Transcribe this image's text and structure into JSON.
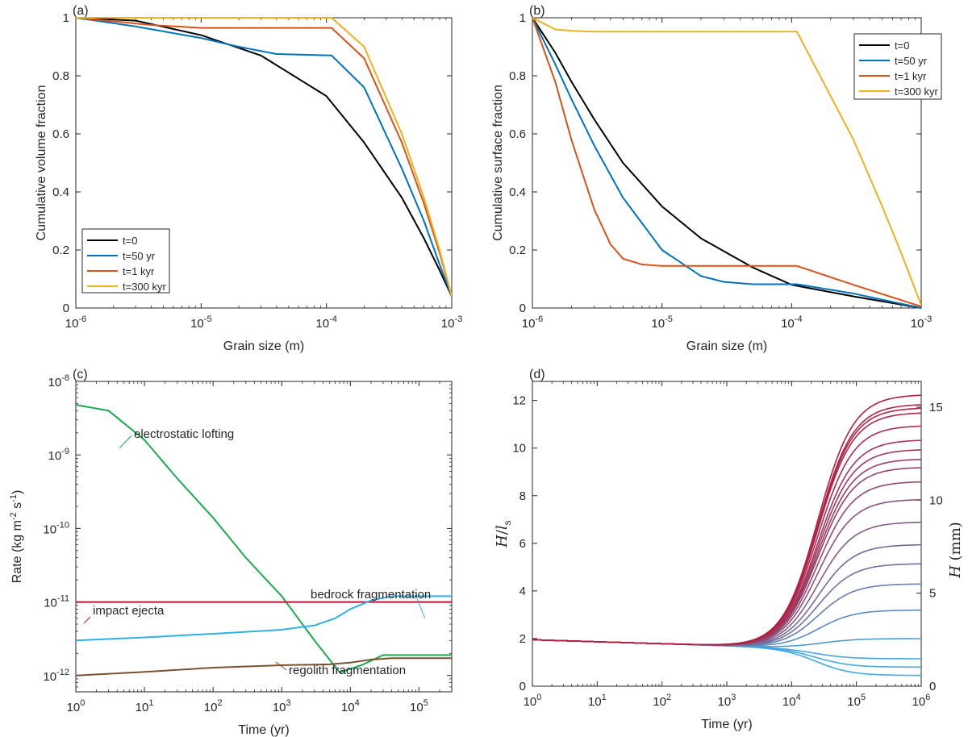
{
  "chart_data": [
    {
      "panel": "(a)",
      "type": "line",
      "xscale": "log",
      "xlim": [
        1e-06,
        0.001
      ],
      "ylim": [
        0,
        1
      ],
      "xlabel": "Grain size (m)",
      "ylabel": "Cumulative volume fraction",
      "legend_position": "bottom-left",
      "xticks": [
        {
          "base": "10",
          "exp": "-6"
        },
        {
          "base": "10",
          "exp": "-5"
        },
        {
          "base": "10",
          "exp": "-4"
        },
        {
          "base": "10",
          "exp": "-3"
        }
      ],
      "yticks": [
        "0",
        "0.2",
        "0.4",
        "0.6",
        "0.8",
        "1"
      ],
      "series": [
        {
          "name": "t=0",
          "color": "#000000",
          "x": [
            1e-06,
            3e-06,
            1e-05,
            3e-05,
            0.0001,
            0.0002,
            0.0004,
            0.0006,
            0.0008,
            0.001
          ],
          "y": [
            1.0,
            0.99,
            0.94,
            0.87,
            0.73,
            0.57,
            0.38,
            0.24,
            0.13,
            0.04
          ]
        },
        {
          "name": "t=50 yr",
          "color": "#0072BD",
          "x": [
            1e-06,
            3e-06,
            1e-05,
            2e-05,
            4e-05,
            0.00011,
            0.0002,
            0.0004,
            0.0006,
            0.0008,
            0.001
          ],
          "y": [
            1.0,
            0.97,
            0.93,
            0.9,
            0.875,
            0.87,
            0.76,
            0.48,
            0.3,
            0.15,
            0.04
          ]
        },
        {
          "name": "t=1 kyr",
          "color": "#D95319",
          "x": [
            1e-06,
            4e-06,
            1e-05,
            0.00011,
            0.0002,
            0.0004,
            0.0006,
            0.0008,
            0.001
          ],
          "y": [
            1.0,
            0.975,
            0.965,
            0.965,
            0.86,
            0.57,
            0.36,
            0.19,
            0.04
          ]
        },
        {
          "name": "t=300 kyr",
          "color": "#EDB120",
          "x": [
            1e-06,
            1e-05,
            0.00011,
            0.0002,
            0.0004,
            0.0006,
            0.0008,
            0.001
          ],
          "y": [
            1.0,
            1.0,
            1.0,
            0.9,
            0.6,
            0.38,
            0.2,
            0.04
          ]
        }
      ]
    },
    {
      "panel": "(b)",
      "type": "line",
      "xscale": "log",
      "xlim": [
        1e-06,
        0.001
      ],
      "ylim": [
        0,
        1
      ],
      "xlabel": "Grain size (m)",
      "ylabel": "Cumulative surface fraction",
      "legend_position": "top-right",
      "xticks": [
        {
          "base": "10",
          "exp": "-6"
        },
        {
          "base": "10",
          "exp": "-5"
        },
        {
          "base": "10",
          "exp": "-4"
        },
        {
          "base": "10",
          "exp": "-3"
        }
      ],
      "yticks": [
        "0",
        "0.2",
        "0.4",
        "0.6",
        "0.8",
        "1"
      ],
      "series": [
        {
          "name": "t=0",
          "color": "#000000",
          "x": [
            1e-06,
            1.5e-06,
            2e-06,
            3e-06,
            5e-06,
            1e-05,
            2e-05,
            5e-05,
            0.0001,
            0.0003,
            0.001
          ],
          "y": [
            1.0,
            0.88,
            0.78,
            0.65,
            0.5,
            0.35,
            0.24,
            0.14,
            0.08,
            0.04,
            0.0
          ]
        },
        {
          "name": "t=50 yr",
          "color": "#0072BD",
          "x": [
            1e-06,
            1.5e-06,
            2e-06,
            3e-06,
            5e-06,
            1e-05,
            2e-05,
            3e-05,
            5e-05,
            0.00011,
            0.0003,
            0.001
          ],
          "y": [
            1.0,
            0.84,
            0.72,
            0.56,
            0.38,
            0.2,
            0.11,
            0.09,
            0.082,
            0.082,
            0.05,
            0.0
          ]
        },
        {
          "name": "t=1 kyr",
          "color": "#D95319",
          "x": [
            1e-06,
            1.5e-06,
            2e-06,
            3e-06,
            4e-06,
            5e-06,
            7e-06,
            1e-05,
            2e-05,
            0.00011,
            0.0003,
            0.001
          ],
          "y": [
            1.0,
            0.78,
            0.58,
            0.34,
            0.22,
            0.17,
            0.15,
            0.145,
            0.145,
            0.145,
            0.08,
            0.005
          ]
        },
        {
          "name": "t=300 kyr",
          "color": "#EDB120",
          "x": [
            1e-06,
            1.5e-06,
            2e-06,
            3e-06,
            1e-05,
            0.00011,
            0.0002,
            0.0003,
            0.0005,
            0.0007,
            0.001
          ],
          "y": [
            1.0,
            0.96,
            0.955,
            0.952,
            0.952,
            0.952,
            0.73,
            0.58,
            0.35,
            0.19,
            0.01
          ]
        }
      ]
    },
    {
      "panel": "(c)",
      "type": "line",
      "xscale": "log",
      "yscale": "log",
      "xlim": [
        1,
        300000.0
      ],
      "ylim": [
        6e-13,
        1e-08
      ],
      "xlabel": "Time (yr)",
      "ylabel": {
        "text": "Rate (kg m",
        "sup1": "-2",
        "mid": " s",
        "sup2": "-1",
        "end": ")"
      },
      "xticks": [
        {
          "base": "10",
          "exp": "0"
        },
        {
          "base": "10",
          "exp": "1"
        },
        {
          "base": "10",
          "exp": "2"
        },
        {
          "base": "10",
          "exp": "3"
        },
        {
          "base": "10",
          "exp": "4"
        },
        {
          "base": "10",
          "exp": "5"
        }
      ],
      "yticks": [
        {
          "base": "10",
          "exp": "-12"
        },
        {
          "base": "10",
          "exp": "-11"
        },
        {
          "base": "10",
          "exp": "-10"
        },
        {
          "base": "10",
          "exp": "-9"
        },
        {
          "base": "10",
          "exp": "-8"
        }
      ],
      "series": [
        {
          "name": "electrostatic lofting",
          "color": "#1AAB4F",
          "x": [
            1,
            3,
            10,
            30,
            100,
            300,
            1000,
            3000,
            7000,
            15000,
            30000,
            100000,
            300000
          ],
          "y": [
            4.8e-09,
            4e-09,
            1.6e-09,
            4.8e-10,
            1.4e-10,
            4e-11,
            1.2e-11,
            3e-12,
            1.1e-12,
            1.4e-12,
            1.9e-12,
            1.9e-12,
            1.9e-12
          ]
        },
        {
          "name": "impact ejecta",
          "color": "#C4102F",
          "x": [
            1,
            300000
          ],
          "y": [
            1e-11,
            1e-11
          ]
        },
        {
          "name": "bedrock fragmentation",
          "color": "#2EB0E6",
          "x": [
            1,
            10,
            100,
            1000,
            3000,
            6000,
            10000,
            20000,
            40000,
            300000
          ],
          "y": [
            3e-12,
            3.3e-12,
            3.7e-12,
            4.2e-12,
            4.8e-12,
            6e-12,
            8e-12,
            1.05e-11,
            1.2e-11,
            1.2e-11
          ]
        },
        {
          "name": "regolith fragmentation",
          "color": "#7B5230",
          "x": [
            1,
            10,
            100,
            1000,
            5000,
            10000,
            20000,
            40000,
            300000
          ],
          "y": [
            1e-12,
            1.12e-12,
            1.28e-12,
            1.38e-12,
            1.42e-12,
            1.5e-12,
            1.65e-12,
            1.72e-12,
            1.72e-12
          ]
        }
      ],
      "annotations": [
        "electrostatic lofting",
        "impact ejecta",
        "bedrock fragmentation",
        "regolith fragmentation"
      ]
    },
    {
      "panel": "(d)",
      "type": "line",
      "xscale": "log",
      "xlim": [
        1,
        1000000.0
      ],
      "ylim": [
        0,
        12.8
      ],
      "xlabel": "Time (yr)",
      "ylabel": {
        "main": "H",
        "slash": "/",
        "l": "l",
        "sub": "s"
      },
      "ylabel_right": {
        "main": "H",
        "unit": " (mm)"
      },
      "xticks": [
        {
          "base": "10",
          "exp": "0"
        },
        {
          "base": "10",
          "exp": "1"
        },
        {
          "base": "10",
          "exp": "2"
        },
        {
          "base": "10",
          "exp": "3"
        },
        {
          "base": "10",
          "exp": "4"
        },
        {
          "base": "10",
          "exp": "5"
        },
        {
          "base": "10",
          "exp": "6"
        }
      ],
      "yticks": [
        "0",
        "2",
        "4",
        "6",
        "8",
        "10",
        "12"
      ],
      "yticks_right": [
        "0",
        "5",
        "10",
        "15"
      ],
      "right_axis_scale": 0.7812,
      "color_low": "#3FAEE6",
      "color_high": "#B51D3E",
      "curve_model": {
        "initial": 1.95,
        "x_min": 1.45,
        "x_mid_log10": 4.4,
        "width_log10": 0.55
      },
      "final_values": [
        0.45,
        0.8,
        1.15,
        2.0,
        3.2,
        4.3,
        5.15,
        5.95,
        6.9,
        7.85,
        8.6,
        9.2,
        9.55,
        9.95,
        10.35,
        10.95,
        11.5,
        11.7,
        11.85,
        12.25
      ]
    }
  ]
}
